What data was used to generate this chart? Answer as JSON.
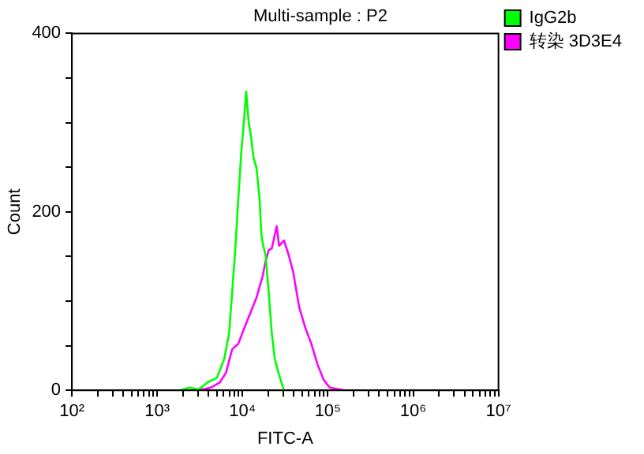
{
  "chart_data": {
    "type": "line",
    "title": "Multi-sample : P2",
    "xlabel": "FITC-A",
    "ylabel": "Count",
    "log": "x",
    "grid": false,
    "legend": "top right",
    "marker": "none",
    "line_style": "solid",
    "xlim": [
      100,
      10000000
    ],
    "ylim": [
      0,
      400
    ],
    "xticks": [
      {
        "value": 100,
        "label": "10²"
      },
      {
        "value": 200,
        "label": null
      },
      {
        "value": 300,
        "label": null
      },
      {
        "value": 400,
        "label": null
      },
      {
        "value": 500,
        "label": null
      },
      {
        "value": 600,
        "label": null
      },
      {
        "value": 700,
        "label": null
      },
      {
        "value": 800,
        "label": null
      },
      {
        "value": 900,
        "label": null
      },
      {
        "value": 1000,
        "label": "10³"
      },
      {
        "value": 2000,
        "label": null
      },
      {
        "value": 3000,
        "label": null
      },
      {
        "value": 4000,
        "label": null
      },
      {
        "value": 5000,
        "label": null
      },
      {
        "value": 6000,
        "label": null
      },
      {
        "value": 7000,
        "label": null
      },
      {
        "value": 8000,
        "label": null
      },
      {
        "value": 9000,
        "label": null
      },
      {
        "value": 10000,
        "label": "10⁴"
      },
      {
        "value": 20000,
        "label": null
      },
      {
        "value": 30000,
        "label": null
      },
      {
        "value": 40000,
        "label": null
      },
      {
        "value": 50000,
        "label": null
      },
      {
        "value": 60000,
        "label": null
      },
      {
        "value": 70000,
        "label": null
      },
      {
        "value": 80000,
        "label": null
      },
      {
        "value": 90000,
        "label": null
      },
      {
        "value": 100000,
        "label": "10⁵"
      },
      {
        "value": 200000,
        "label": null
      },
      {
        "value": 300000,
        "label": null
      },
      {
        "value": 400000,
        "label": null
      },
      {
        "value": 500000,
        "label": null
      },
      {
        "value": 600000,
        "label": null
      },
      {
        "value": 700000,
        "label": null
      },
      {
        "value": 800000,
        "label": null
      },
      {
        "value": 900000,
        "label": null
      },
      {
        "value": 1000000,
        "label": "10⁶"
      },
      {
        "value": 2000000,
        "label": null
      },
      {
        "value": 3000000,
        "label": null
      },
      {
        "value": 4000000,
        "label": null
      },
      {
        "value": 5000000,
        "label": null
      },
      {
        "value": 6000000,
        "label": null
      },
      {
        "value": 7000000,
        "label": null
      },
      {
        "value": 8000000,
        "label": null
      },
      {
        "value": 9000000,
        "label": null
      },
      {
        "value": 10000000,
        "label": "10⁷"
      }
    ],
    "yticks": [
      0,
      {
        "value": 50,
        "label": null
      },
      {
        "value": 100,
        "label": null
      },
      {
        "value": 150,
        "label": null
      },
      200,
      {
        "value": 250,
        "label": null
      },
      {
        "value": 300,
        "label": null
      },
      {
        "value": 350,
        "label": null
      },
      400
    ],
    "series": [
      {
        "name": "IgG2b",
        "color": "#00ff00",
        "x": [
          1800,
          2390,
          3060,
          3920,
          5010,
          6100,
          6960,
          7560,
          8210,
          8910,
          9680,
          10500,
          11030,
          11790,
          12590,
          13450,
          14600,
          15850,
          16640,
          17490,
          18670,
          20270,
          22020,
          23910,
          26840,
          30610
        ],
        "values": [
          0,
          3,
          1,
          9,
          14,
          35,
          64,
          110,
          157,
          214,
          267,
          307,
          335,
          301,
          284,
          261,
          249,
          214,
          174,
          162,
          151,
          110,
          64,
          35,
          17,
          0
        ]
      },
      {
        "name": "转染 3D3E4",
        "color": "#ff00ff",
        "x": [
          3060,
          4250,
          5440,
          6410,
          7560,
          8910,
          10500,
          12390,
          14600,
          17210,
          18670,
          20270,
          22020,
          25120,
          26840,
          30610,
          34900,
          39170,
          46140,
          54440,
          64120,
          75680,
          89130,
          105000,
          158500
        ],
        "values": [
          0,
          3,
          9,
          20,
          46,
          52,
          70,
          87,
          104,
          128,
          145,
          157,
          159,
          184,
          162,
          168,
          151,
          133,
          93,
          70,
          52,
          29,
          12,
          3,
          0
        ]
      }
    ]
  }
}
